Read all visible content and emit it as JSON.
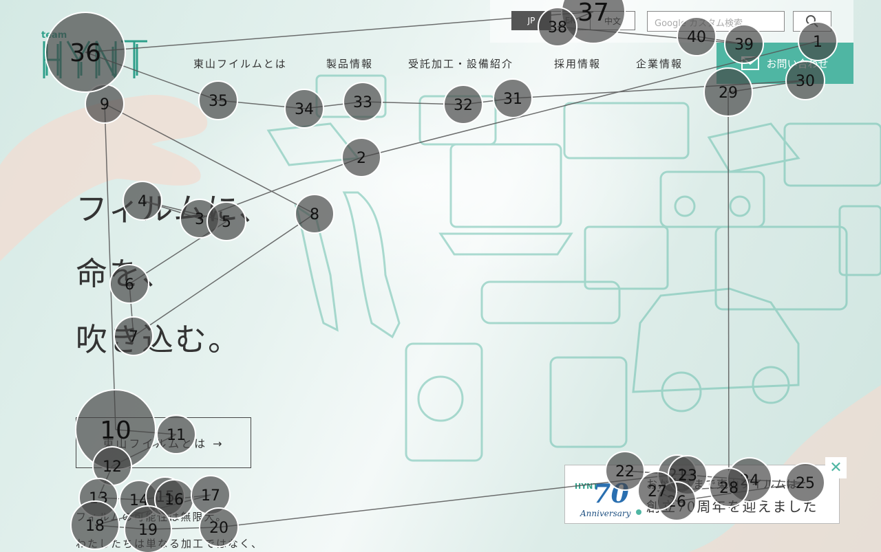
{
  "header": {
    "logo_small": "team",
    "logo_main": "HYNT",
    "lang": {
      "jp": "JP",
      "en": "EN",
      "zh": "中文"
    },
    "search_placeholder": "Google カスタム検索",
    "nav": [
      "東山フイルムとは",
      "製品情報",
      "受託加工・設備紹介",
      "採用情報",
      "企業情報"
    ],
    "contact_label": "お問い合わせ"
  },
  "hero": {
    "lines": [
      "フィルムに、",
      "命を、",
      "吹き込む。"
    ]
  },
  "about_button": "東山フイルムとは →",
  "body_lines": [
    "フィルムの可能性は無限大。",
    "わたしたちは単なる加工ではなく、"
  ],
  "banner": {
    "brand": "HYNT",
    "number": "70",
    "anniversary": "Anniversary",
    "line1": "おかげさまで東山フイルムは",
    "line2": "創立70周年を迎えました",
    "close": "✕"
  },
  "gaze_points": [
    {
      "n": "1"
    },
    {
      "n": "2"
    },
    {
      "n": "3"
    },
    {
      "n": "4"
    },
    {
      "n": "5"
    },
    {
      "n": "6"
    },
    {
      "n": "7"
    },
    {
      "n": "8"
    },
    {
      "n": "9"
    },
    {
      "n": "10"
    },
    {
      "n": "11"
    },
    {
      "n": "12"
    },
    {
      "n": "13"
    },
    {
      "n": "14"
    },
    {
      "n": "15"
    },
    {
      "n": "16"
    },
    {
      "n": "17"
    },
    {
      "n": "18"
    },
    {
      "n": "19"
    },
    {
      "n": "20"
    },
    {
      "n": "21"
    },
    {
      "n": "22"
    },
    {
      "n": "23"
    },
    {
      "n": "24"
    },
    {
      "n": "25"
    },
    {
      "n": "26"
    },
    {
      "n": "27"
    },
    {
      "n": "28"
    },
    {
      "n": "29"
    },
    {
      "n": "30"
    },
    {
      "n": "31"
    },
    {
      "n": "32"
    },
    {
      "n": "33"
    },
    {
      "n": "34"
    },
    {
      "n": "35"
    },
    {
      "n": "36"
    },
    {
      "n": "37"
    },
    {
      "n": "38"
    },
    {
      "n": "39"
    },
    {
      "n": "40"
    }
  ],
  "colors": {
    "accent": "#4fb6a3",
    "dark_button": "#555555",
    "fixation_fill": "#444444"
  }
}
